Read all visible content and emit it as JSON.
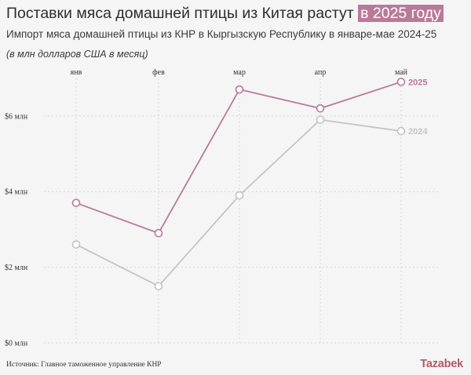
{
  "header": {
    "title_main": "Поставки мяса домашней птицы из Китая растут",
    "title_highlight": "в 2025 году",
    "subtitle": "Импорт мяса домашней птицы из КНР в Кыргызскую Республику в январе-мае 2024-25",
    "units": "(в млн долларов США в месяц)"
  },
  "footer": {
    "source": "Источник: Главное таможенное управление КНР",
    "brand": "Tazabek"
  },
  "chart_data": {
    "type": "line",
    "categories": [
      "янв",
      "фев",
      "мар",
      "апр",
      "май"
    ],
    "ylim": [
      0,
      7
    ],
    "yticks": [
      0,
      2,
      4,
      6
    ],
    "ytick_labels": [
      "$0 млн",
      "$2 млн",
      "$4 млн",
      "$6 млн"
    ],
    "grid": true,
    "series": [
      {
        "name": "2024",
        "values": [
          2.6,
          1.5,
          3.9,
          5.9,
          5.6
        ],
        "color": "#c4c4c4"
      },
      {
        "name": "2025",
        "values": [
          3.7,
          2.9,
          6.7,
          6.2,
          6.9
        ],
        "color": "#b97a98"
      }
    ]
  }
}
